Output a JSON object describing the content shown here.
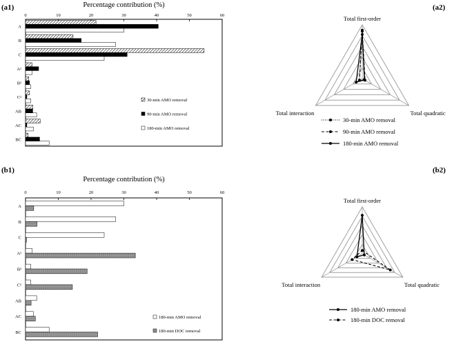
{
  "panel_labels": {
    "a1": "(a1)",
    "a2": "(a2)",
    "b1": "(b1)",
    "b2": "(b2)"
  },
  "chart_data": [
    {
      "id": "a1",
      "type": "bar",
      "orientation": "horizontal",
      "title": "Percentage contribution  (%)",
      "xlim": [
        0,
        60
      ],
      "xticks": [
        "0",
        "10",
        "20",
        "30",
        "40",
        "50",
        "60"
      ],
      "categories": [
        "A",
        "B",
        "C",
        "A²",
        "B²",
        "C²",
        "AB",
        "AC",
        "BC"
      ],
      "series": [
        {
          "name": "30-min AMO removal",
          "style": "hatch",
          "values": [
            21.5,
            14.5,
            54.5,
            2.0,
            1.0,
            1.2,
            2.2,
            4.5,
            0.8
          ]
        },
        {
          "name": "90-min AMO removal",
          "style": "black",
          "values": [
            40.5,
            17.0,
            31.0,
            4.0,
            1.2,
            0.4,
            2.2,
            0.4,
            4.3
          ]
        },
        {
          "name": "180-min AMO removal",
          "style": "white",
          "values": [
            30.0,
            27.5,
            24.0,
            2.0,
            1.6,
            1.6,
            3.4,
            2.4,
            7.2
          ]
        }
      ],
      "legend_position": "lower-right"
    },
    {
      "id": "a2",
      "type": "radar",
      "axes": [
        "Total first-order",
        "Total quadratic",
        "Total interaction"
      ],
      "rmax": 100,
      "series": [
        {
          "name": "30-min AMO removal",
          "style": "dotted",
          "values": [
            90,
            4,
            6
          ]
        },
        {
          "name": "90-min AMO removal",
          "style": "dashed",
          "values": [
            88,
            6,
            6
          ]
        },
        {
          "name": "180-min AMO removal",
          "style": "solid",
          "values": [
            82,
            5,
            13
          ]
        }
      ]
    },
    {
      "id": "b1",
      "type": "bar",
      "orientation": "horizontal",
      "title": "Percentage contribution  (%)",
      "xlim": [
        0,
        60
      ],
      "xticks": [
        "0",
        "10",
        "20",
        "30",
        "40",
        "50",
        "60"
      ],
      "categories": [
        "A",
        "B",
        "C",
        "A²",
        "B²",
        "C²",
        "AB",
        "AC",
        "BC"
      ],
      "series": [
        {
          "name": "180-min AMO removal",
          "style": "white",
          "values": [
            30.0,
            27.5,
            24.0,
            2.0,
            1.6,
            1.6,
            3.4,
            2.4,
            7.2
          ]
        },
        {
          "name": "180-min DOC removal",
          "style": "gray",
          "values": [
            2.5,
            3.5,
            0.3,
            33.5,
            18.8,
            14.3,
            1.7,
            3.0,
            22.0
          ]
        }
      ],
      "legend_position": "lower-right"
    },
    {
      "id": "b2",
      "type": "radar",
      "axes": [
        "Total first-order",
        "Total quadratic",
        "Total interaction"
      ],
      "rmax": 100,
      "series": [
        {
          "name": "180-min AMO removal",
          "style": "solid",
          "values": [
            82,
            5,
            13
          ]
        },
        {
          "name": "180-min DOC removal",
          "style": "dashed",
          "values": [
            7,
            69,
            25
          ]
        }
      ]
    }
  ]
}
